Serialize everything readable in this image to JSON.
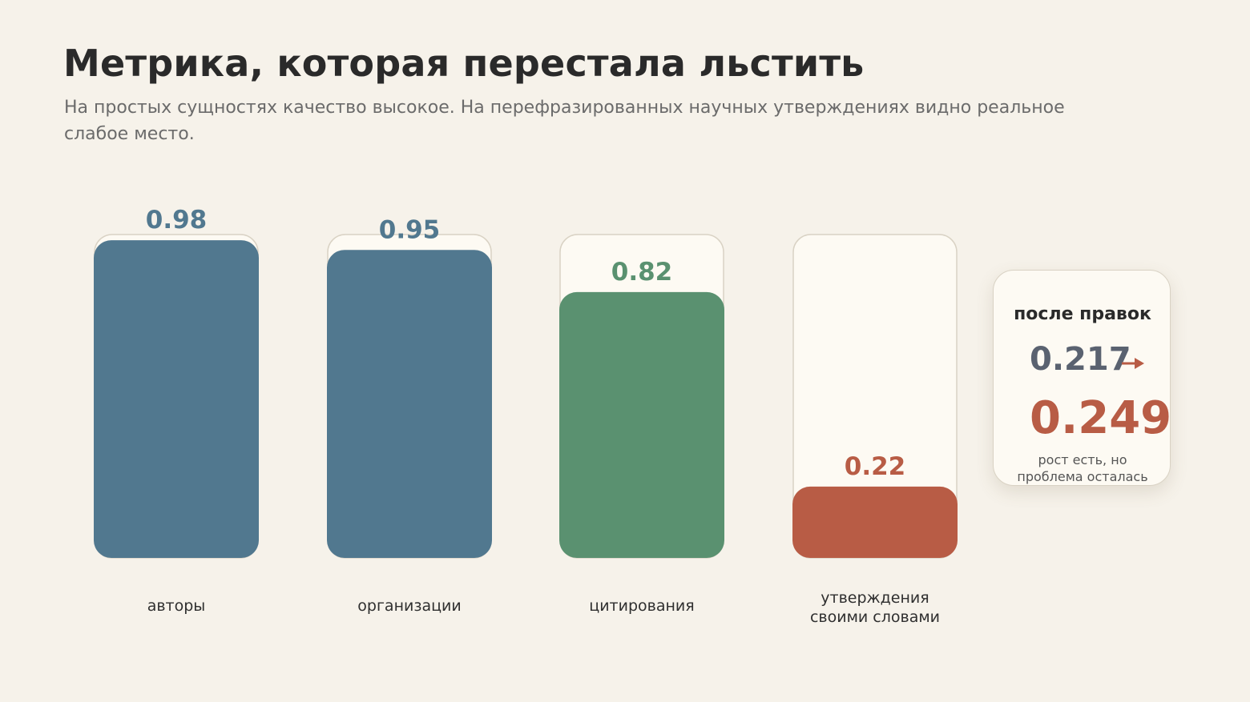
{
  "header": {
    "title": "Метрика, которая перестала льстить",
    "subtitle": "На простых сущностях качество высокое. На перефразированных научных утверждениях видно реальное слабое место."
  },
  "chart_data": {
    "type": "bar",
    "categories": [
      [
        "авторы"
      ],
      [
        "организации"
      ],
      [
        "цитирования"
      ],
      [
        "утверждения",
        "своими словами"
      ]
    ],
    "values": [
      0.98,
      0.95,
      0.82,
      0.22
    ],
    "value_labels": [
      "0.98",
      "0.95",
      "0.82",
      "0.22"
    ],
    "colors": [
      "#51788f",
      "#51788f",
      "#5a9170",
      "#b85c45"
    ],
    "ylim": [
      0,
      1
    ],
    "grid": false,
    "legend": "none",
    "title": "",
    "xlabel": "",
    "ylabel": ""
  },
  "callout": {
    "title": "после правок",
    "before": "0.217",
    "after": "0.249",
    "note_lines": [
      "рост есть, но",
      "проблема осталась"
    ],
    "arrow_icon": "arrow-right-icon",
    "before_color": "#5a6270",
    "after_color": "#b85c45"
  }
}
